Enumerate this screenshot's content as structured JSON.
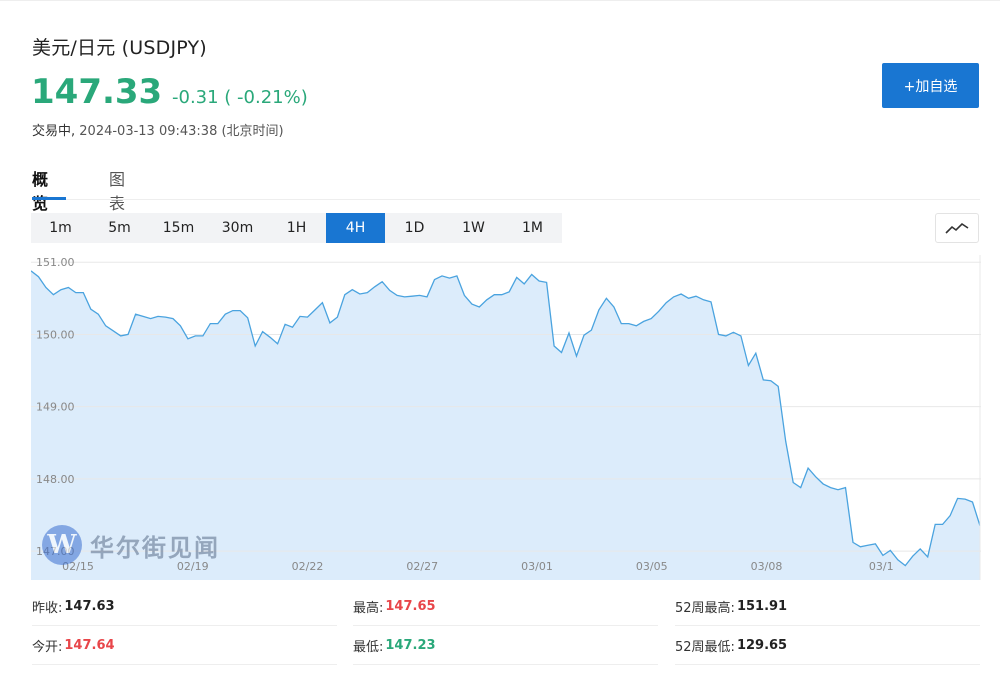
{
  "header": {
    "title": "美元/日元 (USDJPY)",
    "price": "147.33",
    "change": "-0.31 ( -0.21%)",
    "status_label": "交易中,",
    "timestamp": "2024-03-13 09:43:38 (北京时间)"
  },
  "actions": {
    "add_favorite": "+加自选"
  },
  "tabs": [
    {
      "label": "概览",
      "active": true
    },
    {
      "label": "图表",
      "active": false
    }
  ],
  "periods": [
    "1m",
    "5m",
    "15m",
    "30m",
    "1H",
    "4H",
    "1D",
    "1W",
    "1M"
  ],
  "active_period": "4H",
  "watermark": {
    "text": "华尔街见闻",
    "logo_letter": "W"
  },
  "colors": {
    "accent": "#1976d2",
    "down": "#2aa87a",
    "up": "#e8464a",
    "area_fill": "#dcecfb",
    "line": "#4aa3df"
  },
  "stats": {
    "prev_close": {
      "label": "昨收:",
      "value": "147.63"
    },
    "open": {
      "label": "今开:",
      "value": "147.64"
    },
    "high": {
      "label": "最高:",
      "value": "147.65"
    },
    "low": {
      "label": "最低:",
      "value": "147.23"
    },
    "week52_high": {
      "label": "52周最高:",
      "value": "151.91"
    },
    "week52_low": {
      "label": "52周最低:",
      "value": "129.65"
    }
  },
  "chart_data": {
    "type": "area",
    "y_tick_labels": [
      "151.00",
      "150.00",
      "149.00",
      "148.00",
      "147.00"
    ],
    "ylim": [
      146.6,
      151.1
    ],
    "x_tick_labels": [
      "02/15",
      "02/19",
      "02/22",
      "02/27",
      "03/01",
      "03/05",
      "03/08",
      "03/1"
    ],
    "grid": true,
    "values": [
      150.88,
      150.8,
      150.65,
      150.55,
      150.62,
      150.65,
      150.58,
      150.58,
      150.35,
      150.28,
      150.12,
      150.05,
      149.98,
      150.0,
      150.28,
      150.25,
      150.22,
      150.25,
      150.24,
      150.22,
      150.12,
      149.94,
      149.98,
      149.98,
      150.15,
      150.15,
      150.28,
      150.33,
      150.33,
      150.23,
      149.84,
      150.04,
      149.96,
      149.87,
      150.14,
      150.1,
      150.25,
      150.24,
      150.34,
      150.44,
      150.16,
      150.24,
      150.55,
      150.62,
      150.56,
      150.58,
      150.66,
      150.73,
      150.61,
      150.54,
      150.52,
      150.53,
      150.54,
      150.52,
      150.76,
      150.81,
      150.78,
      150.81,
      150.54,
      150.42,
      150.38,
      150.48,
      150.55,
      150.55,
      150.59,
      150.79,
      150.7,
      150.83,
      150.74,
      150.72,
      149.84,
      149.75,
      150.02,
      149.7,
      149.99,
      150.06,
      150.34,
      150.5,
      150.38,
      150.15,
      150.15,
      150.12,
      150.18,
      150.22,
      150.32,
      150.44,
      150.52,
      150.56,
      150.5,
      150.53,
      150.48,
      150.45,
      150.0,
      149.98,
      150.03,
      149.98,
      149.57,
      149.74,
      149.37,
      149.36,
      149.28,
      148.52,
      147.95,
      147.88,
      148.15,
      148.03,
      147.93,
      147.88,
      147.85,
      147.88,
      147.12,
      147.06,
      147.08,
      147.1,
      146.94,
      147.01,
      146.88,
      146.8,
      146.93,
      147.03,
      146.92,
      147.37,
      147.37,
      147.49,
      147.73,
      147.72,
      147.68,
      147.35
    ]
  }
}
